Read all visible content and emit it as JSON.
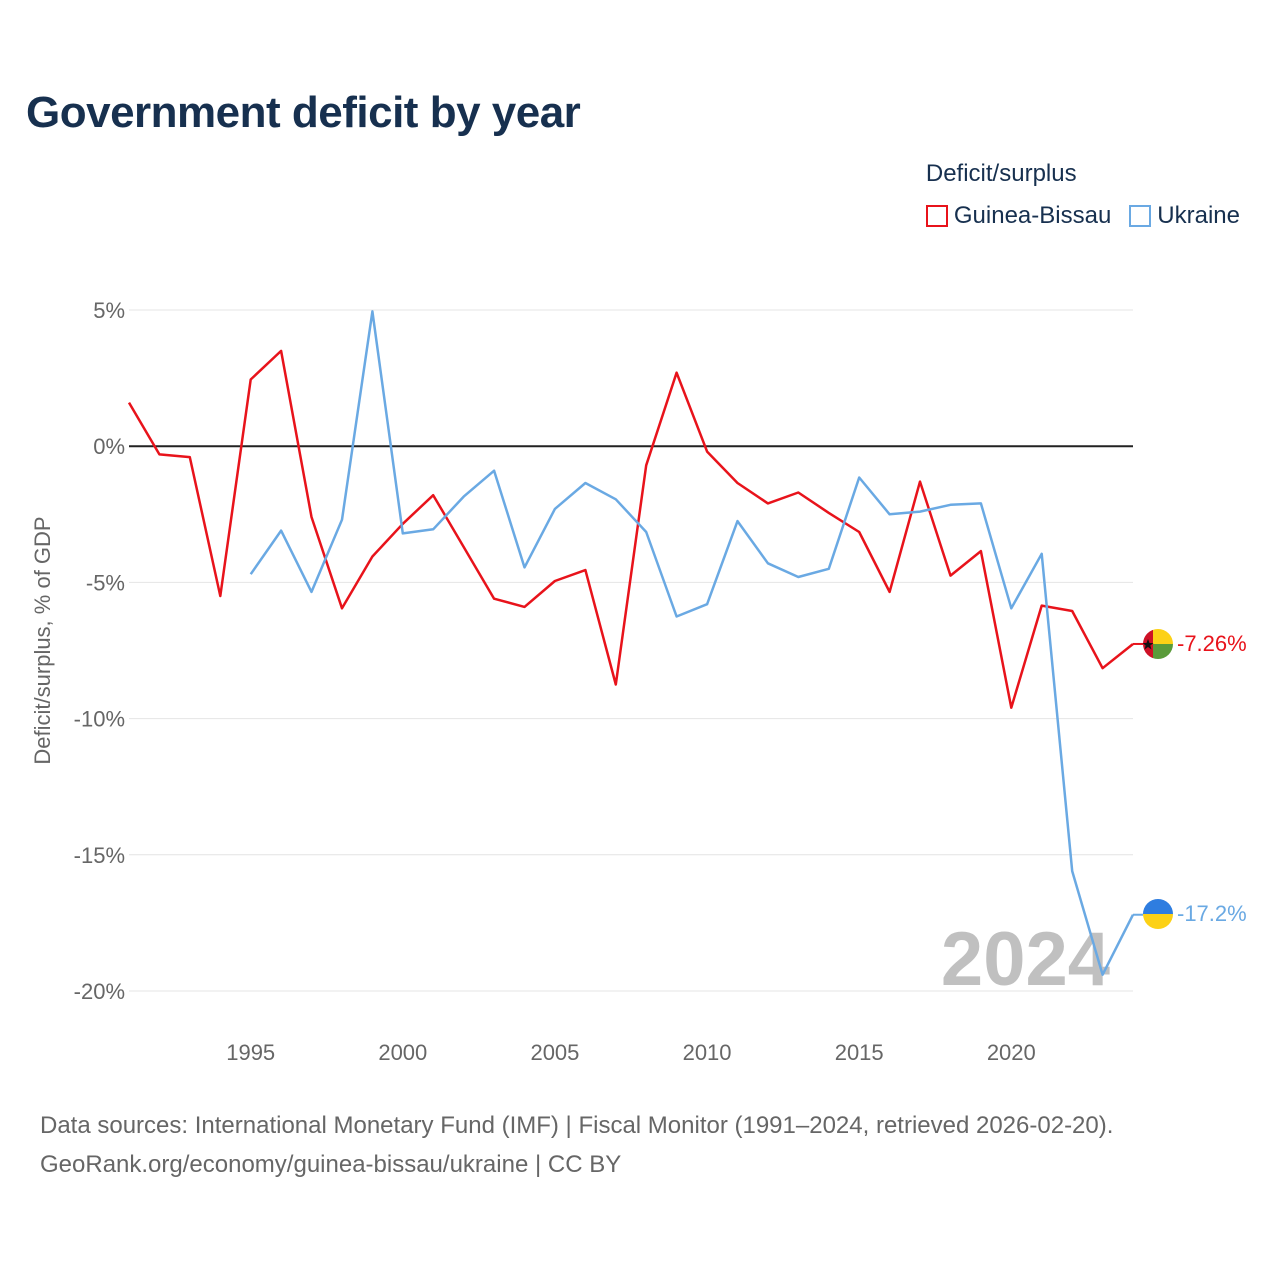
{
  "title": "Government deficit by year",
  "legend": {
    "title": "Deficit/surplus",
    "items": [
      {
        "name": "Guinea-Bissau",
        "color": "#e8131b"
      },
      {
        "name": "Ukraine",
        "color": "#6aa9e3"
      }
    ]
  },
  "year_watermark": "2024",
  "footer": {
    "line1": "Data sources: International Monetary Fund (IMF) | Fiscal Monitor (1991–2024, retrieved 2026-02-20).",
    "line2": "GeoRank.org/economy/guinea-bissau/ukraine | CC BY"
  },
  "chart_data": {
    "type": "line",
    "title": "Government deficit by year",
    "ylabel": "Deficit/surplus, % of GDP",
    "xlabel": "",
    "xlim": [
      1991,
      2024
    ],
    "ylim": [
      -20,
      5
    ],
    "x_ticks": [
      1995,
      2000,
      2005,
      2010,
      2015,
      2020
    ],
    "y_ticks": [
      5,
      0,
      -5,
      -10,
      -15,
      -20
    ],
    "y_tick_labels": [
      "5%",
      "0%",
      "-5%",
      "-10%",
      "-15%",
      "-20%"
    ],
    "grid": true,
    "series": [
      {
        "name": "Guinea-Bissau",
        "color": "#e8131b",
        "end_label": "-7.26%",
        "points": [
          [
            1991,
            1.6
          ],
          [
            1992,
            -0.3
          ],
          [
            1993,
            -0.4
          ],
          [
            1994,
            -5.5
          ],
          [
            1995,
            2.45
          ],
          [
            1996,
            3.5
          ],
          [
            1997,
            -2.6
          ],
          [
            1998,
            -5.95
          ],
          [
            1999,
            -4.05
          ],
          [
            2000,
            -2.85
          ],
          [
            2001,
            -1.8
          ],
          [
            2002,
            -3.7
          ],
          [
            2003,
            -5.6
          ],
          [
            2004,
            -5.9
          ],
          [
            2005,
            -4.95
          ],
          [
            2006,
            -4.55
          ],
          [
            2007,
            -8.75
          ],
          [
            2008,
            -0.7
          ],
          [
            2009,
            2.7
          ],
          [
            2010,
            -0.2
          ],
          [
            2011,
            -1.35
          ],
          [
            2012,
            -2.1
          ],
          [
            2013,
            -1.7
          ],
          [
            2014,
            -2.45
          ],
          [
            2015,
            -3.15
          ],
          [
            2016,
            -5.35
          ],
          [
            2017,
            -1.3
          ],
          [
            2018,
            -4.75
          ],
          [
            2019,
            -3.85
          ],
          [
            2020,
            -9.6
          ],
          [
            2021,
            -5.85
          ],
          [
            2022,
            -6.05
          ],
          [
            2023,
            -8.15
          ],
          [
            2024,
            -7.26
          ]
        ]
      },
      {
        "name": "Ukraine",
        "color": "#6aa9e3",
        "end_label": "-17.2%",
        "points": [
          [
            1995,
            -4.7
          ],
          [
            1996,
            -3.1
          ],
          [
            1997,
            -5.35
          ],
          [
            1998,
            -2.7
          ],
          [
            1999,
            4.95
          ],
          [
            2000,
            -3.2
          ],
          [
            2001,
            -3.05
          ],
          [
            2002,
            -1.85
          ],
          [
            2003,
            -0.9
          ],
          [
            2004,
            -4.45
          ],
          [
            2005,
            -2.3
          ],
          [
            2006,
            -1.35
          ],
          [
            2007,
            -1.95
          ],
          [
            2008,
            -3.15
          ],
          [
            2009,
            -6.25
          ],
          [
            2010,
            -5.8
          ],
          [
            2011,
            -2.75
          ],
          [
            2012,
            -4.3
          ],
          [
            2013,
            -4.8
          ],
          [
            2014,
            -4.5
          ],
          [
            2015,
            -1.15
          ],
          [
            2016,
            -2.5
          ],
          [
            2017,
            -2.4
          ],
          [
            2018,
            -2.15
          ],
          [
            2019,
            -2.1
          ],
          [
            2020,
            -5.95
          ],
          [
            2021,
            -3.95
          ],
          [
            2022,
            -15.6
          ],
          [
            2023,
            -19.4
          ],
          [
            2024,
            -17.2
          ]
        ]
      }
    ]
  }
}
